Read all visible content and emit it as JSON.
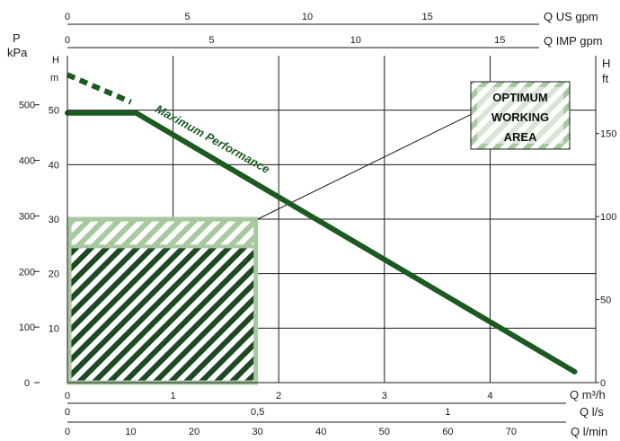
{
  "chart_data": {
    "type": "line",
    "title": "",
    "grid": true,
    "x_axes": {
      "q_m3h": {
        "unit_label": "Q m³/h",
        "range": [
          0,
          5
        ],
        "ticks": [
          "0",
          "1",
          "2",
          "3",
          "4"
        ]
      },
      "q_ls": {
        "unit_label": "Q l/s",
        "ticks": [
          "0",
          "0,5",
          "1"
        ]
      },
      "q_lmin": {
        "unit_label": "Q l/min",
        "ticks": [
          "0",
          "10",
          "20",
          "30",
          "40",
          "50",
          "60",
          "70"
        ]
      },
      "q_usgpm": {
        "unit_label": "Q US gpm",
        "ticks": [
          "0",
          "5",
          "10",
          "15"
        ]
      },
      "q_impgpm": {
        "unit_label": "Q IMP gpm",
        "ticks": [
          "0",
          "5",
          "10",
          "15"
        ]
      }
    },
    "y_axes": {
      "h_m": {
        "unit_top": "H",
        "unit_bottom": "m",
        "range": [
          0,
          60
        ],
        "ticks": [
          "0",
          "10",
          "20",
          "30",
          "40",
          "50"
        ]
      },
      "p_kpa": {
        "unit_top": "P",
        "unit_bottom": "kPa",
        "ticks": [
          "0",
          "100",
          "200",
          "300",
          "400",
          "500"
        ]
      },
      "h_ft": {
        "unit_top": "H",
        "unit_bottom": "ft",
        "ticks": [
          "0",
          "50",
          "100",
          "150"
        ]
      }
    },
    "series": [
      {
        "name": "Maximum Performance",
        "color": "#1d5a22",
        "dashed_segment": {
          "x": [
            0,
            0.6
          ],
          "y": [
            56.5,
            51.5
          ]
        },
        "x": [
          0,
          0.65,
          4.8
        ],
        "y": [
          49.5,
          49.5,
          2
        ]
      }
    ],
    "working_area": {
      "x": [
        0,
        1.8
      ],
      "y": [
        0,
        30
      ],
      "hatched_band_y": [
        25,
        30
      ],
      "color_light": "#a8c8a0",
      "color_dark": "#1d4a22"
    },
    "legend_box": {
      "lines": [
        "OPTIMUM",
        "WORKING",
        "AREA"
      ]
    }
  }
}
